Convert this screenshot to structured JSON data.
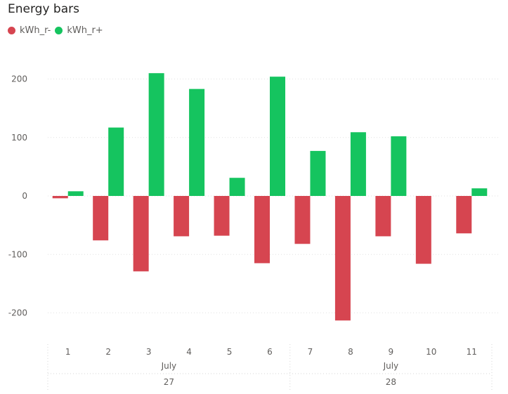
{
  "chart_data": {
    "type": "bar",
    "title": "Energy bars",
    "categories": [
      "1",
      "2",
      "3",
      "4",
      "5",
      "6",
      "7",
      "8",
      "9",
      "10",
      "11"
    ],
    "x_hierarchy": [
      {
        "label": "July",
        "sublabel": "27",
        "categories": [
          "1",
          "2",
          "3",
          "4",
          "5",
          "6"
        ]
      },
      {
        "label": "July",
        "sublabel": "28",
        "categories": [
          "7",
          "8",
          "9",
          "10",
          "11"
        ]
      }
    ],
    "series": [
      {
        "name": "kWh_r-",
        "color": "#d64550",
        "values": [
          -4,
          -76,
          -129,
          -69,
          -68,
          -115,
          -82,
          -213,
          -69,
          -116,
          -64
        ]
      },
      {
        "name": "kWh_r+",
        "color": "#15c45f",
        "values": [
          8,
          117,
          210,
          183,
          31,
          204,
          77,
          109,
          102,
          null,
          13
        ]
      }
    ],
    "yticks": [
      -200,
      -100,
      0,
      100,
      200
    ],
    "ylim": [
      -235,
      235
    ],
    "grid": true,
    "legend": "top-left"
  }
}
